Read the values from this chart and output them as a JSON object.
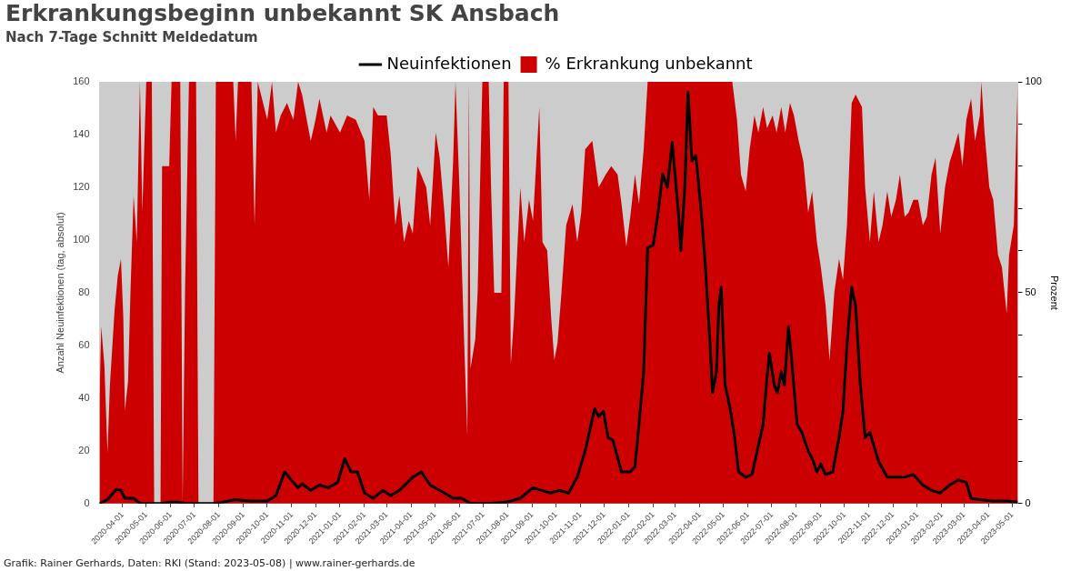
{
  "chart_data": {
    "type": "line",
    "title": "Erkrankungsbeginn unbekannt SK Ansbach",
    "subtitle": "Nach 7-Tage Schnitt Meldedatum",
    "ylabel": "Anzahl Neuinfektionen (tag, absolut)",
    "y2label": "Prozent",
    "annotations": [
      "Grafik: Rainer Gerhards, Daten: RKI (Stand: 2023-05-08) | www.rainer-gerhards.de"
    ],
    "xlim": [
      "2020-03-03",
      "2023-05-08"
    ],
    "xticks": [
      "2020-04-01",
      "2020-05-01",
      "2020-06-01",
      "2020-07-01",
      "2020-08-01",
      "2020-09-01",
      "2020-10-01",
      "2020-11-01",
      "2020-12-01",
      "2021-01-01",
      "2021-02-01",
      "2021-03-01",
      "2021-04-01",
      "2021-05-01",
      "2021-06-01",
      "2021-07-01",
      "2021-08-01",
      "2021-09-01",
      "2021-10-01",
      "2021-11-01",
      "2021-12-01",
      "2022-01-01",
      "2022-02-01",
      "2022-03-01",
      "2022-04-01",
      "2022-05-01",
      "2022-06-01",
      "2022-07-01",
      "2022-08-01",
      "2022-09-01",
      "2022-10-01",
      "2022-11-01",
      "2022-12-01",
      "2023-01-01",
      "2023-02-01",
      "2023-03-01",
      "2023-04-01",
      "2023-05-01"
    ],
    "ylim": [
      0,
      160
    ],
    "yticks": [
      0,
      20,
      40,
      60,
      80,
      100,
      120,
      140,
      160
    ],
    "y2lim": [
      0,
      100
    ],
    "y2ticks": [
      0,
      {
        "value": 10,
        "label": null
      },
      {
        "value": 20,
        "label": null
      },
      {
        "value": 30,
        "label": null
      },
      {
        "value": 40,
        "label": null
      },
      50,
      {
        "value": 60,
        "label": null
      },
      {
        "value": 70,
        "label": null
      },
      {
        "value": 80,
        "label": null
      },
      {
        "value": 90,
        "label": null
      },
      100
    ],
    "grid": false,
    "legend": "top",
    "marker": "none",
    "series": [
      {
        "name": "Neuinfektionen",
        "color": "#000000",
        "x": [
          "2020-03-03",
          "2020-03-13",
          "2020-03-24",
          "2020-03-30",
          "2020-04-04",
          "2020-04-15",
          "2020-04-21",
          "2020-04-26",
          "2020-05-19",
          "2020-05-30",
          "2020-06-10",
          "2020-06-22",
          "2020-07-25",
          "2020-08-05",
          "2020-08-22",
          "2020-09-09",
          "2020-10-01",
          "2020-10-12",
          "2020-10-23",
          "2020-11-03",
          "2020-11-09",
          "2020-11-14",
          "2020-11-25",
          "2020-12-06",
          "2020-12-17",
          "2020-12-29",
          "2021-01-07",
          "2021-01-15",
          "2021-01-23",
          "2021-02-01",
          "2021-02-12",
          "2021-02-24",
          "2021-03-06",
          "2021-03-17",
          "2021-04-03",
          "2021-04-14",
          "2021-04-25",
          "2021-05-13",
          "2021-05-24",
          "2021-06-04",
          "2021-06-15",
          "2021-07-08",
          "2021-07-30",
          "2021-08-17",
          "2021-09-02",
          "2021-09-13",
          "2021-09-24",
          "2021-10-05",
          "2021-10-17",
          "2021-10-28",
          "2021-11-07",
          "2021-11-19",
          "2021-11-24",
          "2021-11-30",
          "2021-12-06",
          "2021-12-12",
          "2021-12-23",
          "2022-01-03",
          "2022-01-09",
          "2022-01-14",
          "2022-01-20",
          "2022-01-25",
          "2022-02-01",
          "2022-02-07",
          "2022-02-13",
          "2022-02-19",
          "2022-02-25",
          "2022-03-05",
          "2022-03-08",
          "2022-03-13",
          "2022-03-17",
          "2022-03-22",
          "2022-03-27",
          "2022-04-03",
          "2022-04-08",
          "2022-04-14",
          "2022-04-17",
          "2022-04-22",
          "2022-04-25",
          "2022-04-28",
          "2022-05-03",
          "2022-05-10",
          "2022-05-15",
          "2022-05-20",
          "2022-05-29",
          "2022-06-06",
          "2022-06-14",
          "2022-06-20",
          "2022-06-25",
          "2022-06-28",
          "2022-07-04",
          "2022-07-08",
          "2022-07-13",
          "2022-07-17",
          "2022-07-22",
          "2022-07-26",
          "2022-08-02",
          "2022-08-08",
          "2022-08-16",
          "2022-08-21",
          "2022-08-27",
          "2022-09-01",
          "2022-09-07",
          "2022-09-16",
          "2022-09-24",
          "2022-09-29",
          "2022-10-04",
          "2022-10-10",
          "2022-10-15",
          "2022-10-21",
          "2022-10-27",
          "2022-11-02",
          "2022-11-07",
          "2022-11-13",
          "2022-11-24",
          "2022-12-05",
          "2022-12-16",
          "2022-12-27",
          "2023-01-08",
          "2023-01-19",
          "2023-01-30",
          "2023-02-11",
          "2023-02-22",
          "2023-03-04",
          "2023-03-10",
          "2023-03-21",
          "2023-04-07",
          "2023-04-24",
          "2023-05-08"
        ],
        "values": [
          0,
          1.5,
          5.4,
          5,
          2,
          2,
          0.5,
          0,
          0,
          0.5,
          0.5,
          0,
          0,
          0.5,
          1.5,
          1,
          1,
          3,
          12,
          8,
          6,
          7.5,
          5,
          7,
          6,
          8,
          17,
          12,
          12,
          4,
          2,
          5,
          3,
          5,
          10,
          12,
          7,
          4,
          2,
          2,
          0,
          0,
          0.5,
          2,
          6,
          5,
          4,
          5,
          4,
          10,
          20,
          36,
          33,
          35,
          25,
          24,
          12,
          12,
          14,
          30,
          50,
          97,
          98,
          110,
          125,
          120,
          137,
          110,
          96,
          120,
          156,
          130,
          132,
          110,
          90,
          60,
          42,
          50,
          75,
          82,
          45,
          35,
          25,
          12,
          10,
          11,
          22,
          30,
          48,
          57,
          45,
          42,
          50,
          45,
          67,
          55,
          30,
          27,
          20,
          17,
          12,
          15,
          11,
          12,
          25,
          35,
          60,
          82,
          75,
          45,
          25,
          27,
          22,
          16,
          10,
          10,
          10,
          11,
          7,
          5,
          4,
          7,
          9,
          8,
          2,
          1.5,
          1,
          1,
          0.5
        ]
      },
      {
        "name": "% Erkrankung unbekannt",
        "type": "area",
        "axis": "y2",
        "color": "#cc0000",
        "x": [
          "2020-03-03",
          "2020-03-05",
          "2020-03-09",
          "2020-03-13",
          "2020-03-16",
          "2020-03-22",
          "2020-03-26",
          "2020-03-30",
          "2020-04-02",
          "2020-04-04",
          "2020-04-08",
          "2020-04-11",
          "2020-04-15",
          "2020-04-19",
          "2020-04-23",
          "2020-04-26",
          "2020-05-01",
          "2020-05-08",
          "2020-05-11",
          "2020-05-19",
          "2020-05-21",
          "2020-05-30",
          "2020-06-02",
          "2020-06-13",
          "2020-06-16",
          "2020-06-19",
          "2020-06-24",
          "2020-07-03",
          "2020-07-06",
          "2020-07-25",
          "2020-07-28",
          "2020-08-19",
          "2020-08-22",
          "2020-08-25",
          "2020-09-11",
          "2020-09-15",
          "2020-09-19",
          "2020-10-01",
          "2020-10-07",
          "2020-10-12",
          "2020-10-18",
          "2020-10-26",
          "2020-11-03",
          "2020-11-09",
          "2020-11-14",
          "2020-11-25",
          "2020-12-01",
          "2020-12-06",
          "2020-12-15",
          "2020-12-20",
          "2021-01-01",
          "2021-01-10",
          "2021-01-21",
          "2021-02-01",
          "2021-02-07",
          "2021-02-12",
          "2021-02-18",
          "2021-03-01",
          "2021-03-06",
          "2021-03-12",
          "2021-03-17",
          "2021-03-23",
          "2021-03-29",
          "2021-04-03",
          "2021-04-09",
          "2021-04-20",
          "2021-04-25",
          "2021-05-02",
          "2021-05-07",
          "2021-05-13",
          "2021-05-18",
          "2021-05-24",
          "2021-05-27",
          "2021-06-01",
          "2021-06-07",
          "2021-06-11",
          "2021-06-13",
          "2021-06-15",
          "2021-06-21",
          "2021-06-24",
          "2021-06-30",
          "2021-07-08",
          "2021-07-11",
          "2021-07-15",
          "2021-07-24",
          "2021-07-27",
          "2021-08-02",
          "2021-08-05",
          "2021-08-09",
          "2021-08-17",
          "2021-08-22",
          "2021-08-28",
          "2021-09-02",
          "2021-09-10",
          "2021-09-14",
          "2021-09-20",
          "2021-09-25",
          "2021-09-29",
          "2021-10-03",
          "2021-10-08",
          "2021-10-14",
          "2021-10-22",
          "2021-10-28",
          "2021-11-02",
          "2021-11-07",
          "2021-11-16",
          "2021-11-24",
          "2021-12-03",
          "2021-12-10",
          "2021-12-18",
          "2021-12-23",
          "2021-12-29",
          "2022-01-03",
          "2022-01-09",
          "2022-01-14",
          "2022-01-20",
          "2022-01-25",
          "2022-04-25",
          "2022-05-12",
          "2022-05-18",
          "2022-05-23",
          "2022-05-29",
          "2022-06-03",
          "2022-06-09",
          "2022-06-14",
          "2022-06-20",
          "2022-06-25",
          "2022-07-02",
          "2022-07-07",
          "2022-07-13",
          "2022-07-18",
          "2022-07-24",
          "2022-07-29",
          "2022-08-04",
          "2022-08-10",
          "2022-08-16",
          "2022-08-21",
          "2022-08-27",
          "2022-09-01",
          "2022-09-07",
          "2022-09-12",
          "2022-09-18",
          "2022-09-24",
          "2022-09-29",
          "2022-10-04",
          "2022-10-10",
          "2022-10-15",
          "2022-10-23",
          "2022-10-27",
          "2022-11-02",
          "2022-11-07",
          "2022-11-13",
          "2022-11-18",
          "2022-11-24",
          "2022-11-29",
          "2022-12-05",
          "2022-12-10",
          "2022-12-16",
          "2022-12-21",
          "2022-12-27",
          "2023-01-02",
          "2023-01-08",
          "2023-01-13",
          "2023-01-19",
          "2023-01-24",
          "2023-01-30",
          "2023-02-05",
          "2023-02-11",
          "2023-02-16",
          "2023-02-22",
          "2023-02-27",
          "2023-03-04",
          "2023-03-10",
          "2023-03-15",
          "2023-03-21",
          "2023-03-23",
          "2023-03-27",
          "2023-04-02",
          "2023-04-07",
          "2023-04-13",
          "2023-04-18",
          "2023-04-24",
          "2023-04-27",
          "2023-05-03",
          "2023-05-08"
        ],
        "values": [
          25,
          42,
          33,
          12,
          28,
          46,
          54,
          58,
          44,
          22,
          29,
          50,
          73,
          62,
          100,
          69,
          100,
          100,
          0,
          0,
          80,
          80,
          100,
          100,
          0,
          50,
          100,
          100,
          0,
          0,
          100,
          100,
          86,
          100,
          100,
          66,
          100,
          91,
          100,
          88,
          92,
          95,
          91,
          100,
          97,
          86,
          91,
          96,
          88,
          92,
          88,
          92,
          91,
          86,
          72,
          94,
          92,
          92,
          83,
          66,
          73,
          62,
          67,
          64,
          80,
          75,
          66,
          88,
          82,
          69,
          56,
          81,
          100,
          75,
          38,
          16,
          100,
          32,
          39,
          50,
          100,
          100,
          75,
          50,
          50,
          100,
          100,
          33,
          44,
          75,
          62,
          72,
          67,
          94,
          62,
          60,
          44,
          34,
          38,
          50,
          66,
          71,
          62,
          69,
          84,
          86,
          75,
          78,
          80,
          78,
          71,
          61,
          68,
          78,
          71,
          84,
          100,
          100,
          100,
          91,
          78,
          74,
          84,
          92,
          88,
          94,
          89,
          92,
          88,
          94,
          88,
          95,
          92,
          86,
          81,
          69,
          74,
          62,
          56,
          47,
          34,
          50,
          58,
          53,
          66,
          95,
          97,
          94,
          75,
          62,
          74,
          62,
          66,
          74,
          68,
          72,
          78,
          68,
          69,
          72,
          72,
          66,
          68,
          78,
          82,
          64,
          75,
          81,
          84,
          88,
          80,
          91,
          96,
          86,
          92,
          100,
          88,
          75,
          72,
          59,
          56,
          45,
          59,
          66,
          100
        ]
      }
    ]
  }
}
